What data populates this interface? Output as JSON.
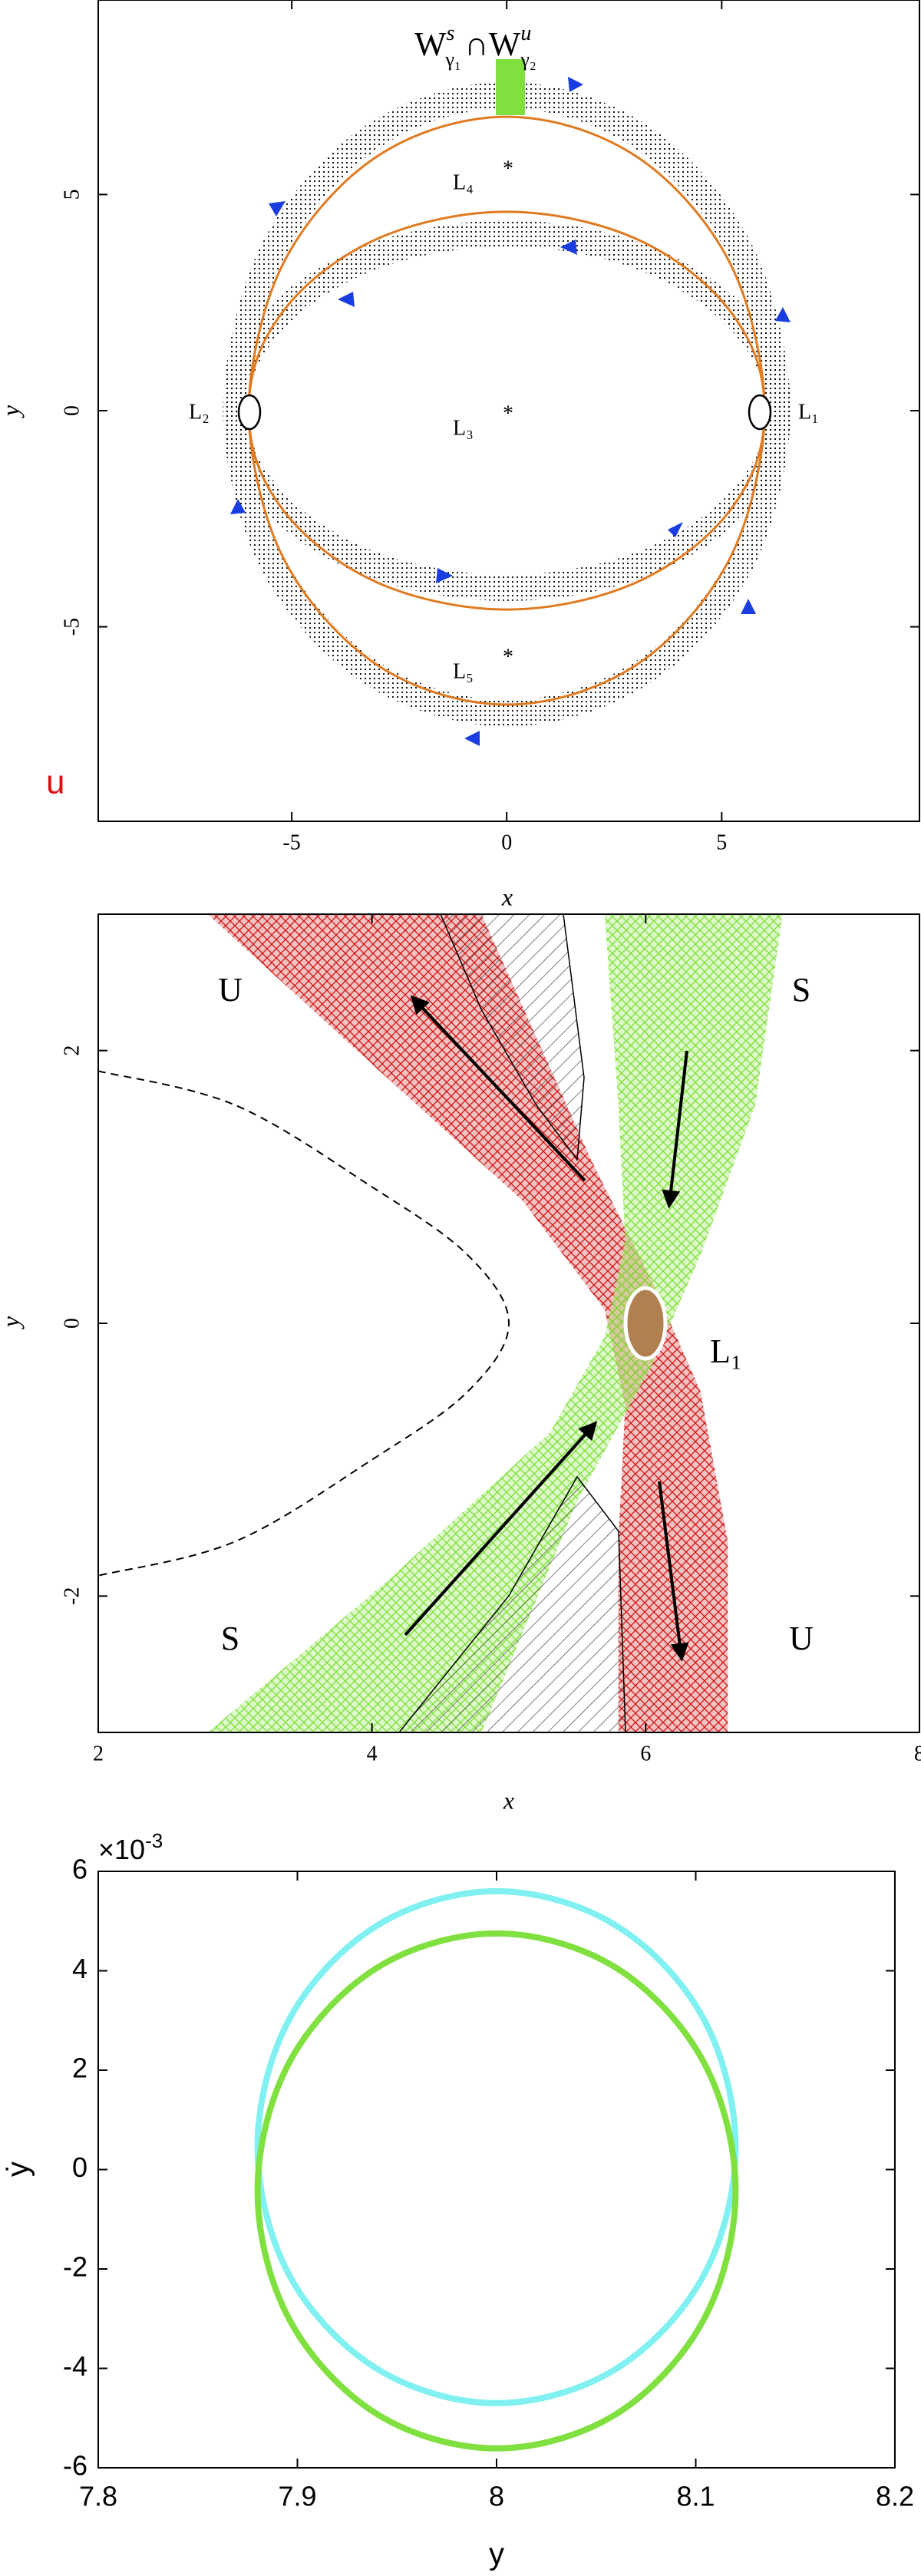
{
  "chart_data": [
    {
      "type": "orbit",
      "xlabel": "x",
      "ylabel": "y",
      "xlim": [
        -9.5,
        9.6
      ],
      "ylim": [
        -9.5,
        9.5
      ],
      "xticks": [
        -5,
        0,
        5
      ],
      "yticks": [
        -5,
        0,
        5
      ],
      "annotations": [
        [
          "W",
          "s",
          "γ₁",
          "∩",
          "W",
          "u",
          "γ₂"
        ],
        "L₄",
        "*",
        "L₃",
        "*",
        "L₅",
        "*",
        "L₁",
        "L₂",
        "u"
      ],
      "series": [
        {
          "color": "#000000",
          "style": "dotted",
          "x": [
            6.3,
            5.46,
            3.15,
            0,
            -3.15,
            -5.46,
            -6.3,
            -5.46,
            -3.15,
            0,
            3.15,
            5.46
          ],
          "y": [
            0,
            3.65,
            6.32,
            7.3,
            6.32,
            3.65,
            0,
            -2.05,
            -3.55,
            -4.1,
            -3.55,
            -2.05
          ]
        },
        {
          "color": "#000000",
          "style": "dotted",
          "x": [
            6.3,
            5.46,
            3.15,
            0,
            -3.15,
            -5.46,
            -6.3,
            -5.46,
            -3.15,
            0,
            3.15,
            5.46
          ],
          "y": [
            0,
            2.05,
            3.55,
            4.1,
            3.55,
            2.05,
            0,
            -3.5,
            -6.06,
            -7.0,
            -6.06,
            -3.5
          ]
        },
        {
          "color": "#e07a20",
          "style": "solid",
          "x": [
            6,
            5.2,
            3,
            0,
            -3,
            -5.2,
            -6,
            -5.2,
            -3,
            0,
            3,
            5.2
          ],
          "y": [
            0,
            3.4,
            5.89,
            6.8,
            5.89,
            3.4,
            0,
            -2.3,
            -3.98,
            -4.6,
            -3.98,
            -2.3
          ]
        },
        {
          "color": "#e07a20",
          "style": "solid",
          "x": [
            6,
            5.2,
            3,
            0,
            -3,
            -5.2,
            -6,
            -5.2,
            -3,
            0,
            3,
            5.2
          ],
          "y": [
            0,
            2.3,
            3.98,
            4.6,
            3.98,
            2.3,
            0,
            -3.4,
            -5.89,
            -6.8,
            -5.89,
            -3.4
          ]
        }
      ]
    },
    {
      "type": "line",
      "xlabel": "x",
      "ylabel": "y",
      "xlim": [
        2,
        8
      ],
      "ylim": [
        -3,
        3
      ],
      "xticks": [
        2,
        4,
        6,
        8
      ],
      "yticks": [
        -2,
        0,
        2
      ],
      "annotations": [
        "U",
        "S",
        "S",
        "U",
        "L₁"
      ],
      "series": [
        {
          "color": "#000000",
          "style": "dashed",
          "x": [
            2,
            3,
            4,
            4.7,
            5,
            4.7,
            4,
            3,
            2
          ],
          "y": [
            1.85,
            1.6,
            1.0,
            0.5,
            0,
            -0.5,
            -1.0,
            -1.6,
            -1.85
          ]
        },
        {
          "color": "#d01010",
          "style": "hatched",
          "x": [
            2.8,
            4.0,
            5.1,
            5.7,
            5.85,
            5.8,
            5.8,
            6.6,
            6.6,
            6.4,
            6.05,
            5.6,
            4.8
          ],
          "y": [
            3,
            1.9,
            0.9,
            0.1,
            -0.6,
            -1.6,
            -3,
            -3,
            -1.6,
            -0.5,
            0.3,
            1.2,
            3
          ]
        },
        {
          "color": "#7ae030",
          "style": "hatched",
          "x": [
            5.7,
            5.8,
            5.85,
            5.7,
            5.3,
            4.1,
            2.8,
            4.8,
            5.5,
            6.05,
            6.4,
            6.8,
            7.0
          ],
          "y": [
            3,
            1.6,
            0.6,
            -0.1,
            -0.8,
            -1.9,
            -3,
            -3,
            -1.3,
            -0.3,
            0.5,
            1.6,
            3
          ]
        }
      ]
    },
    {
      "type": "orbit",
      "xlabel": "y",
      "ylabel": "ẏ",
      "xlim": [
        7.8,
        8.2
      ],
      "ylim": [
        -6,
        6
      ],
      "xticks": [
        7.8,
        7.9,
        8,
        8.1,
        8.2
      ],
      "yticks": [
        -6,
        -4,
        -2,
        0,
        2,
        4,
        6
      ],
      "annotations": [
        [
          "×10",
          "-3"
        ]
      ],
      "series": [
        {
          "color": "#80f0f0",
          "style": "solid",
          "x": [
            8.12,
            8.104,
            8.06,
            8,
            7.94,
            7.896,
            7.88,
            7.896,
            7.94,
            8,
            8.06,
            8.104
          ],
          "y": [
            0.45,
            3.03,
            4.91,
            5.6,
            4.91,
            3.03,
            0.45,
            -2.13,
            -4.01,
            -4.7,
            -4.01,
            -2.13
          ]
        },
        {
          "color": "#80e040",
          "style": "solid",
          "x": [
            8.12,
            8.104,
            8.06,
            8,
            7.94,
            7.896,
            7.88,
            7.896,
            7.94,
            8,
            8.06,
            8.104
          ],
          "y": [
            -0.43,
            2.16,
            4.06,
            4.75,
            4.06,
            2.16,
            -0.43,
            -3.02,
            -4.92,
            -5.61,
            -4.92,
            -3.02
          ]
        }
      ]
    }
  ]
}
